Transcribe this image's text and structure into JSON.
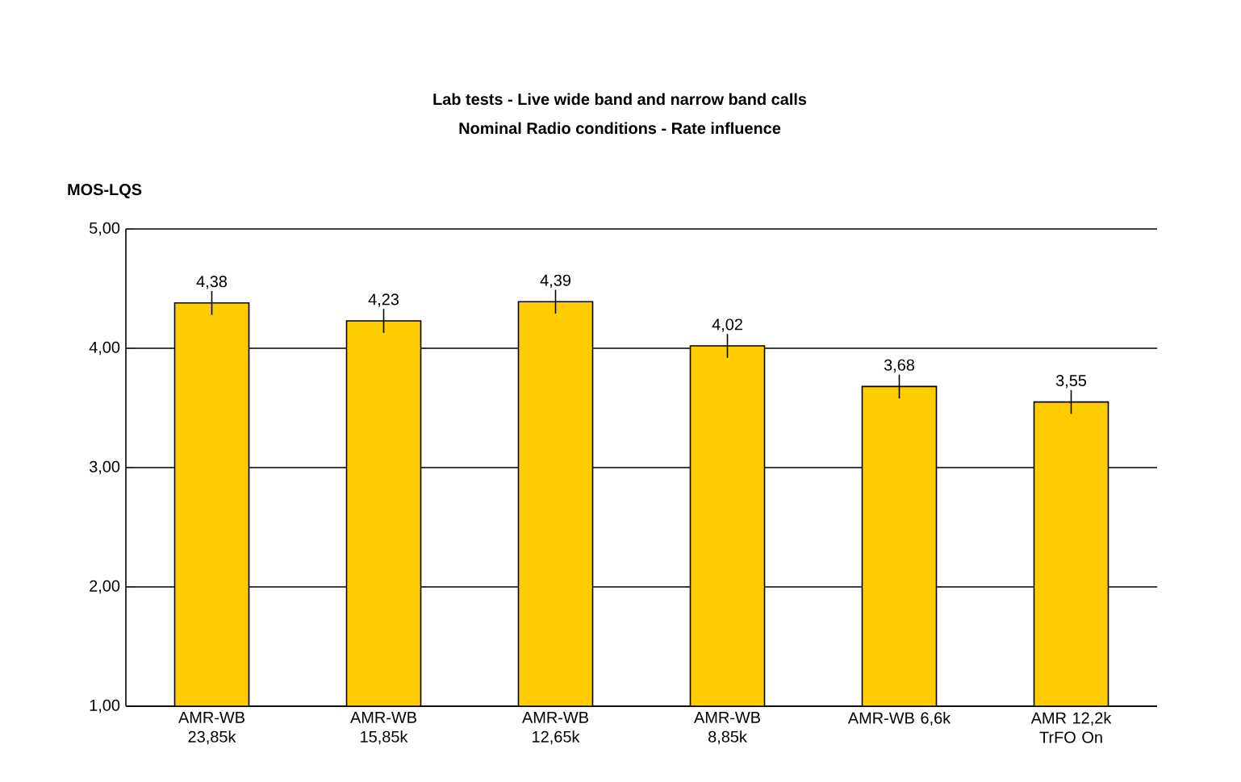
{
  "chart_data": {
    "type": "bar",
    "title": "Lab tests - Live wide band and narrow band calls",
    "subtitle": "Nominal Radio conditions - Rate influence",
    "ylabel": "MOS-LQS",
    "categories": [
      "AMR-WB 23,85k",
      "AMR-WB 15,85k",
      "AMR-WB 12,65k",
      "AMR-WB 8,85k",
      "AMR-WB 6,6k",
      "AMR 12,2k TrFO On"
    ],
    "values": [
      4.38,
      4.23,
      4.39,
      4.02,
      3.68,
      3.55
    ],
    "value_labels": [
      "4,38",
      "4,23",
      "4,39",
      "4,02",
      "3,68",
      "3,55"
    ],
    "errors": [
      0.1,
      0.1,
      0.1,
      0.1,
      0.1,
      0.1
    ],
    "color": "#ffcc00",
    "ylim": [
      1,
      5
    ],
    "yticks": [
      {
        "value": 1,
        "label": "1,00"
      },
      {
        "value": 2,
        "label": "2,00"
      },
      {
        "value": 3,
        "label": "3,00"
      },
      {
        "value": 4,
        "label": "4,00"
      },
      {
        "value": 5,
        "label": "5,00"
      }
    ],
    "grid": "y"
  }
}
